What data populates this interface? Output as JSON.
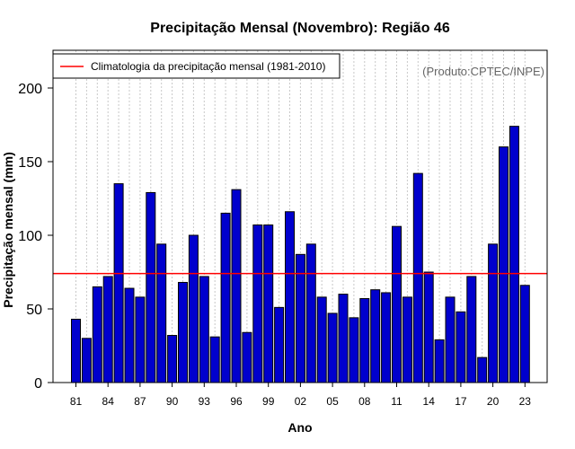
{
  "chart_data": {
    "type": "bar",
    "title": "Precipitação Mensal (Novembro): Região 46",
    "xlabel": "Ano",
    "ylabel": "Precipitação mensal (mm)",
    "ylim": [
      0,
      225
    ],
    "yticks": [
      0,
      50,
      100,
      150,
      200
    ],
    "categories": [
      "81",
      "82",
      "83",
      "84",
      "85",
      "86",
      "87",
      "88",
      "89",
      "90",
      "91",
      "92",
      "93",
      "94",
      "95",
      "96",
      "97",
      "98",
      "99",
      "00",
      "01",
      "02",
      "03",
      "04",
      "05",
      "06",
      "07",
      "08",
      "09",
      "10",
      "11",
      "12",
      "13",
      "14",
      "15",
      "16",
      "17",
      "18",
      "19",
      "20",
      "21",
      "22",
      "23"
    ],
    "xtick_labels": [
      "81",
      "84",
      "87",
      "90",
      "93",
      "96",
      "99",
      "02",
      "05",
      "08",
      "11",
      "14",
      "17",
      "20",
      "23"
    ],
    "series": [
      {
        "name": "Precipitação mensal",
        "values": [
          43,
          30,
          65,
          72,
          135,
          64,
          58,
          129,
          94,
          32,
          68,
          100,
          72,
          31,
          115,
          131,
          34,
          107,
          107,
          51,
          116,
          87,
          94,
          58,
          47,
          60,
          44,
          57,
          63,
          61,
          106,
          58,
          142,
          75,
          29,
          58,
          48,
          72,
          17,
          94,
          160,
          174,
          66
        ],
        "color": "#0000cd"
      }
    ],
    "reference_line": {
      "label": "Climatologia da precipitação mensal (1981-2010)",
      "value": 74,
      "color": "#ff0000"
    },
    "legend_position": "top-left",
    "grid": "vertical dotted",
    "credit": "(Produto:CPTEC/INPE)"
  }
}
